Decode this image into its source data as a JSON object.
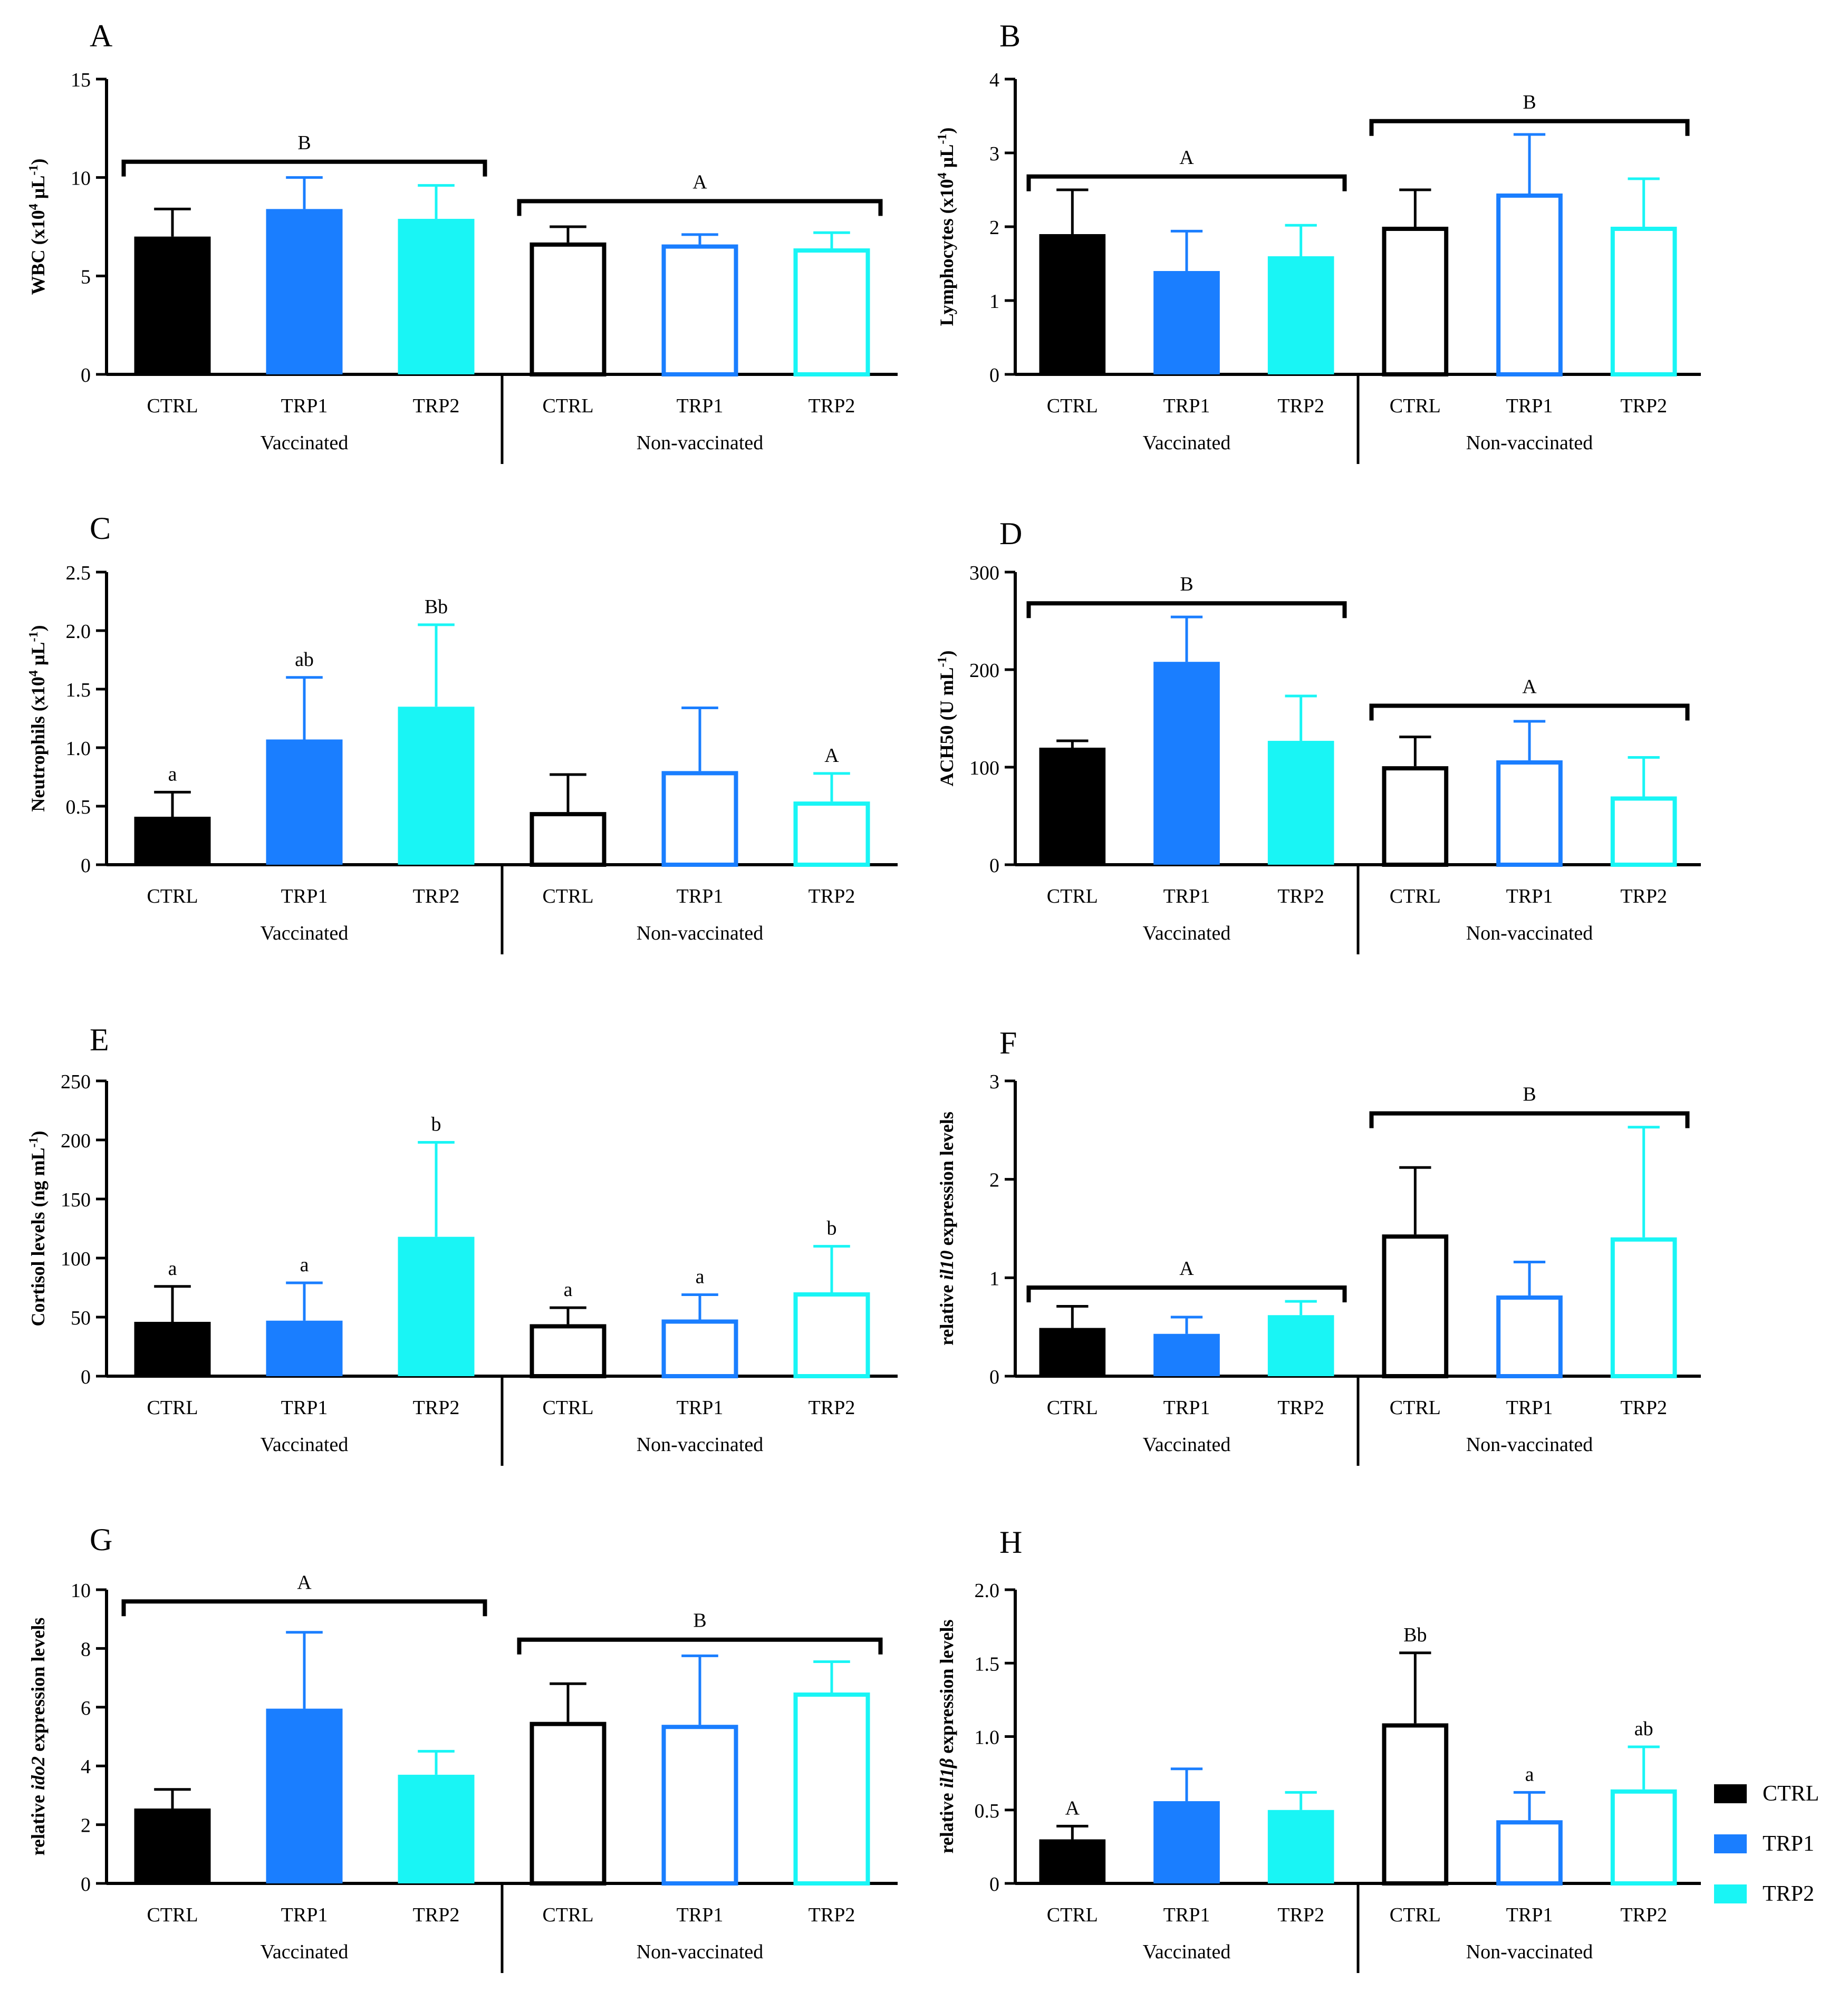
{
  "colors": {
    "CTRL": "#000000",
    "TRP1": "#1a7eff",
    "TRP2": "#19f5f5"
  },
  "legend": [
    {
      "key": "CTRL",
      "label": "CTRL"
    },
    {
      "key": "TRP1",
      "label": "TRP1"
    },
    {
      "key": "TRP2",
      "label": "TRP2"
    }
  ],
  "chart_data": [
    {
      "panel": "A",
      "type": "bar",
      "ylabel": {
        "parts": [
          {
            "t": "WBC (x10"
          },
          {
            "t": "4",
            "sup": true
          },
          {
            "t": " µL"
          },
          {
            "t": "-1",
            "sup": true
          },
          {
            "t": ")"
          }
        ]
      },
      "ylim": [
        0,
        15
      ],
      "yticks": [
        "0",
        "5",
        "10",
        "15"
      ],
      "ytick_values": [
        0,
        5,
        10,
        15
      ],
      "groups": [
        "Vaccinated",
        "Non-vaccinated"
      ],
      "categories": [
        "CTRL",
        "TRP1",
        "TRP2",
        "CTRL",
        "TRP1",
        "TRP2"
      ],
      "treatments": [
        "CTRL",
        "TRP1",
        "TRP2",
        "CTRL",
        "TRP1",
        "TRP2"
      ],
      "filled": [
        true,
        true,
        true,
        false,
        false,
        false
      ],
      "values": [
        7.0,
        8.4,
        7.9,
        6.7,
        6.6,
        6.4
      ],
      "errors": [
        1.4,
        1.6,
        1.7,
        0.8,
        0.5,
        0.8
      ],
      "bar_labels": [
        "",
        "",
        "",
        "",
        "",
        ""
      ],
      "brackets": [
        {
          "from": 0,
          "to": 2,
          "label": "B",
          "y": 10.8
        },
        {
          "from": 3,
          "to": 5,
          "label": "A",
          "y": 8.8
        }
      ]
    },
    {
      "panel": "B",
      "type": "bar",
      "ylabel": {
        "parts": [
          {
            "t": "Lymphocytes (x10"
          },
          {
            "t": "4",
            "sup": true
          },
          {
            "t": " µL"
          },
          {
            "t": "-1",
            "sup": true
          },
          {
            "t": ")"
          }
        ]
      },
      "ylim": [
        0,
        4
      ],
      "yticks": [
        "0",
        "1",
        "2",
        "3",
        "4"
      ],
      "ytick_values": [
        0,
        1,
        2,
        3,
        4
      ],
      "groups": [
        "Vaccinated",
        "Non-vaccinated"
      ],
      "categories": [
        "CTRL",
        "TRP1",
        "TRP2",
        "CTRL",
        "TRP1",
        "TRP2"
      ],
      "treatments": [
        "CTRL",
        "TRP1",
        "TRP2",
        "CTRL",
        "TRP1",
        "TRP2"
      ],
      "filled": [
        true,
        true,
        true,
        false,
        false,
        false
      ],
      "values": [
        1.9,
        1.4,
        1.6,
        2.0,
        2.45,
        2.0
      ],
      "errors": [
        0.6,
        0.54,
        0.42,
        0.5,
        0.8,
        0.65
      ],
      "bar_labels": [
        "",
        "",
        "",
        "",
        "",
        ""
      ],
      "brackets": [
        {
          "from": 0,
          "to": 2,
          "label": "A",
          "y": 2.68
        },
        {
          "from": 3,
          "to": 5,
          "label": "B",
          "y": 3.43
        }
      ]
    },
    {
      "panel": "C",
      "type": "bar",
      "ylabel": {
        "parts": [
          {
            "t": "Neutrophils (x10"
          },
          {
            "t": "4",
            "sup": true
          },
          {
            "t": " µL"
          },
          {
            "t": "-1",
            "sup": true
          },
          {
            "t": ")"
          }
        ]
      },
      "ylim": [
        0,
        2.5
      ],
      "yticks": [
        "0",
        "0.5",
        "1.0",
        "1.5",
        "2.0",
        "2.5"
      ],
      "ytick_values": [
        0,
        0.5,
        1.0,
        1.5,
        2.0,
        2.5
      ],
      "groups": [
        "Vaccinated",
        "Non-vaccinated"
      ],
      "categories": [
        "CTRL",
        "TRP1",
        "TRP2",
        "CTRL",
        "TRP1",
        "TRP2"
      ],
      "treatments": [
        "CTRL",
        "TRP1",
        "TRP2",
        "CTRL",
        "TRP1",
        "TRP2"
      ],
      "filled": [
        true,
        true,
        true,
        false,
        false,
        false
      ],
      "values": [
        0.41,
        1.07,
        1.35,
        0.45,
        0.8,
        0.54
      ],
      "errors": [
        0.21,
        0.53,
        0.7,
        0.32,
        0.54,
        0.24
      ],
      "bar_labels": [
        "a",
        "ab",
        "Bb",
        "",
        "",
        "A"
      ],
      "brackets": []
    },
    {
      "panel": "D",
      "type": "bar",
      "ylabel": {
        "parts": [
          {
            "t": "ACH50 (U mL"
          },
          {
            "t": "-1",
            "sup": true
          },
          {
            "t": ")"
          }
        ]
      },
      "ylim": [
        0,
        300
      ],
      "yticks": [
        "0",
        "100",
        "200",
        "300"
      ],
      "ytick_values": [
        0,
        100,
        200,
        300
      ],
      "groups": [
        "Vaccinated",
        "Non-vaccinated"
      ],
      "categories": [
        "CTRL",
        "TRP1",
        "TRP2",
        "CTRL",
        "TRP1",
        "TRP2"
      ],
      "treatments": [
        "CTRL",
        "TRP1",
        "TRP2",
        "CTRL",
        "TRP1",
        "TRP2"
      ],
      "filled": [
        true,
        true,
        true,
        false,
        false,
        false
      ],
      "values": [
        120,
        208,
        127,
        101,
        107,
        70
      ],
      "errors": [
        7,
        46,
        46,
        30,
        40,
        40
      ],
      "bar_labels": [
        "",
        "",
        "",
        "",
        "",
        ""
      ],
      "brackets": [
        {
          "from": 0,
          "to": 2,
          "label": "B",
          "y": 268
        },
        {
          "from": 3,
          "to": 5,
          "label": "A",
          "y": 163
        }
      ]
    },
    {
      "panel": "E",
      "type": "bar",
      "ylabel": {
        "parts": [
          {
            "t": "Cortisol levels (ng mL"
          },
          {
            "t": "-1",
            "sup": true
          },
          {
            "t": ")"
          }
        ]
      },
      "ylim": [
        0,
        250
      ],
      "yticks": [
        "0",
        "50",
        "100",
        "150",
        "200",
        "250"
      ],
      "ytick_values": [
        0,
        50,
        100,
        150,
        200,
        250
      ],
      "groups": [
        "Vaccinated",
        "Non-vaccinated"
      ],
      "categories": [
        "CTRL",
        "TRP1",
        "TRP2",
        "CTRL",
        "TRP1",
        "TRP2"
      ],
      "treatments": [
        "CTRL",
        "TRP1",
        "TRP2",
        "CTRL",
        "TRP1",
        "TRP2"
      ],
      "filled": [
        true,
        true,
        true,
        false,
        false,
        false
      ],
      "values": [
        46,
        47,
        118,
        44,
        48,
        71
      ],
      "errors": [
        30,
        32,
        80,
        14,
        21,
        39
      ],
      "bar_labels": [
        "a",
        "a",
        "b",
        "a",
        "a",
        "b"
      ],
      "brackets": []
    },
    {
      "panel": "F",
      "type": "bar",
      "ylabel": {
        "parts": [
          {
            "t": "relative "
          },
          {
            "t": "il10",
            "italic": true
          },
          {
            "t": " expression levels"
          }
        ]
      },
      "ylim": [
        0,
        3
      ],
      "yticks": [
        "0",
        "1",
        "2",
        "3"
      ],
      "ytick_values": [
        0,
        1,
        2,
        3
      ],
      "groups": [
        "Vaccinated",
        "Non-vaccinated"
      ],
      "categories": [
        "CTRL",
        "TRP1",
        "TRP2",
        "CTRL",
        "TRP1",
        "TRP2"
      ],
      "treatments": [
        "CTRL",
        "TRP1",
        "TRP2",
        "CTRL",
        "TRP1",
        "TRP2"
      ],
      "filled": [
        true,
        true,
        true,
        false,
        false,
        false
      ],
      "values": [
        0.49,
        0.43,
        0.62,
        1.44,
        0.82,
        1.41
      ],
      "errors": [
        0.22,
        0.17,
        0.14,
        0.68,
        0.34,
        1.12
      ],
      "bar_labels": [
        "",
        "",
        "",
        "",
        "",
        ""
      ],
      "brackets": [
        {
          "from": 0,
          "to": 2,
          "label": "A",
          "y": 0.9
        },
        {
          "from": 3,
          "to": 5,
          "label": "B",
          "y": 2.67
        }
      ]
    },
    {
      "panel": "G",
      "type": "bar",
      "ylabel": {
        "parts": [
          {
            "t": "relative "
          },
          {
            "t": "ido2",
            "italic": true
          },
          {
            "t": " expression levels"
          }
        ]
      },
      "ylim": [
        0,
        10
      ],
      "yticks": [
        "0",
        "2",
        "4",
        "6",
        "8",
        "10"
      ],
      "ytick_values": [
        0,
        2,
        4,
        6,
        8,
        10
      ],
      "groups": [
        "Vaccinated",
        "Non-vaccinated"
      ],
      "categories": [
        "CTRL",
        "TRP1",
        "TRP2",
        "CTRL",
        "TRP1",
        "TRP2"
      ],
      "treatments": [
        "CTRL",
        "TRP1",
        "TRP2",
        "CTRL",
        "TRP1",
        "TRP2"
      ],
      "filled": [
        true,
        true,
        true,
        false,
        false,
        false
      ],
      "values": [
        2.55,
        5.95,
        3.7,
        5.5,
        5.4,
        6.5
      ],
      "errors": [
        0.65,
        2.6,
        0.8,
        1.3,
        2.35,
        1.05
      ],
      "bar_labels": [
        "",
        "",
        "",
        "",
        "",
        ""
      ],
      "brackets": [
        {
          "from": 0,
          "to": 2,
          "label": "A",
          "y": 9.6
        },
        {
          "from": 3,
          "to": 5,
          "label": "B",
          "y": 8.3
        }
      ]
    },
    {
      "panel": "H",
      "type": "bar",
      "ylabel": {
        "parts": [
          {
            "t": "relative "
          },
          {
            "t": "il1β",
            "italic": true
          },
          {
            "t": " expression levels"
          }
        ]
      },
      "ylim": [
        0,
        2.0
      ],
      "yticks": [
        "0",
        "0.5",
        "1.0",
        "1.5",
        "2.0"
      ],
      "ytick_values": [
        0,
        0.5,
        1.0,
        1.5,
        2.0
      ],
      "groups": [
        "Vaccinated",
        "Non-vaccinated"
      ],
      "categories": [
        "CTRL",
        "TRP1",
        "TRP2",
        "CTRL",
        "TRP1",
        "TRP2"
      ],
      "treatments": [
        "CTRL",
        "TRP1",
        "TRP2",
        "CTRL",
        "TRP1",
        "TRP2"
      ],
      "filled": [
        true,
        true,
        true,
        false,
        false,
        false
      ],
      "values": [
        0.3,
        0.56,
        0.5,
        1.09,
        0.43,
        0.64
      ],
      "errors": [
        0.09,
        0.22,
        0.12,
        0.48,
        0.19,
        0.29
      ],
      "bar_labels": [
        "A",
        "",
        "",
        "Bb",
        "a",
        "ab"
      ],
      "brackets": []
    }
  ]
}
